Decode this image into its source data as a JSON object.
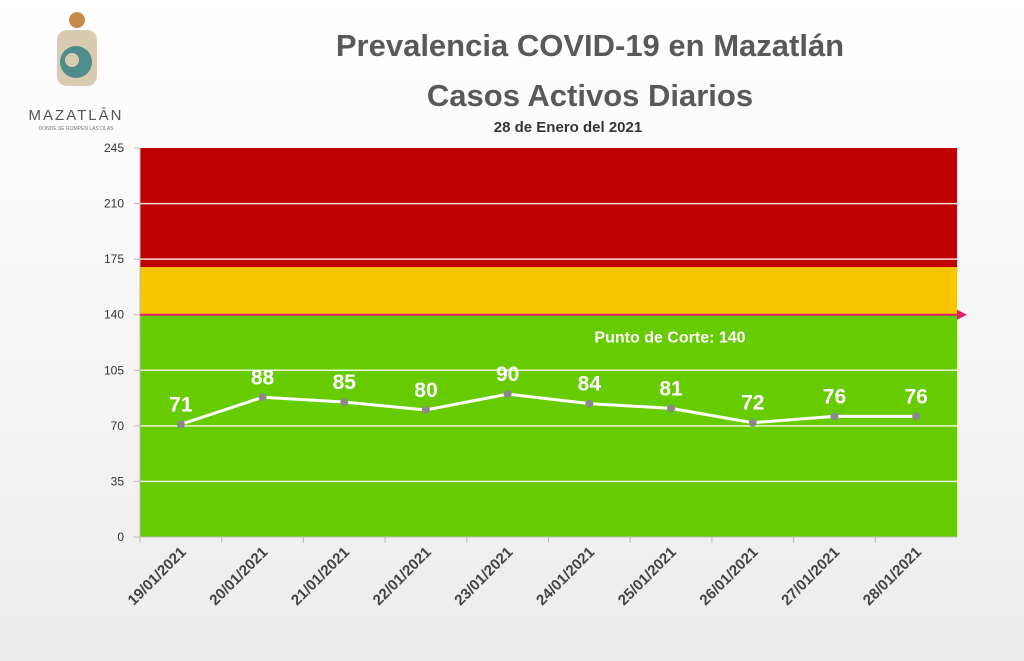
{
  "logo": {
    "name": "MAZATLĀN",
    "tagline": "DONDE SE ROMPEN LAS OLAS"
  },
  "chart_data": {
    "type": "line",
    "title": "Prevalencia COVID-19 en Mazatlán",
    "subtitle": "Casos Activos Diarios",
    "date_note": "28 de Enero del 2021",
    "categories": [
      "19/01/2021",
      "20/01/2021",
      "21/01/2021",
      "22/01/2021",
      "23/01/2021",
      "24/01/2021",
      "25/01/2021",
      "26/01/2021",
      "27/01/2021",
      "28/01/2021"
    ],
    "values": [
      71,
      88,
      85,
      80,
      90,
      84,
      81,
      72,
      76,
      76
    ],
    "color": "#ffffff",
    "marker_color": "#8a8a8a",
    "ylim": [
      0,
      245
    ],
    "yticks": [
      0,
      35,
      70,
      105,
      140,
      175,
      210,
      245
    ],
    "grid": true,
    "bands": [
      {
        "from": 0,
        "to": 140,
        "color": "#66cc00"
      },
      {
        "from": 140,
        "to": 170,
        "color": "#f7c600"
      },
      {
        "from": 170,
        "to": 245,
        "color": "#c00000"
      }
    ],
    "threshold": 140,
    "threshold_color": "#e0206a",
    "threshold_label": "Punto de Corte: 140"
  }
}
